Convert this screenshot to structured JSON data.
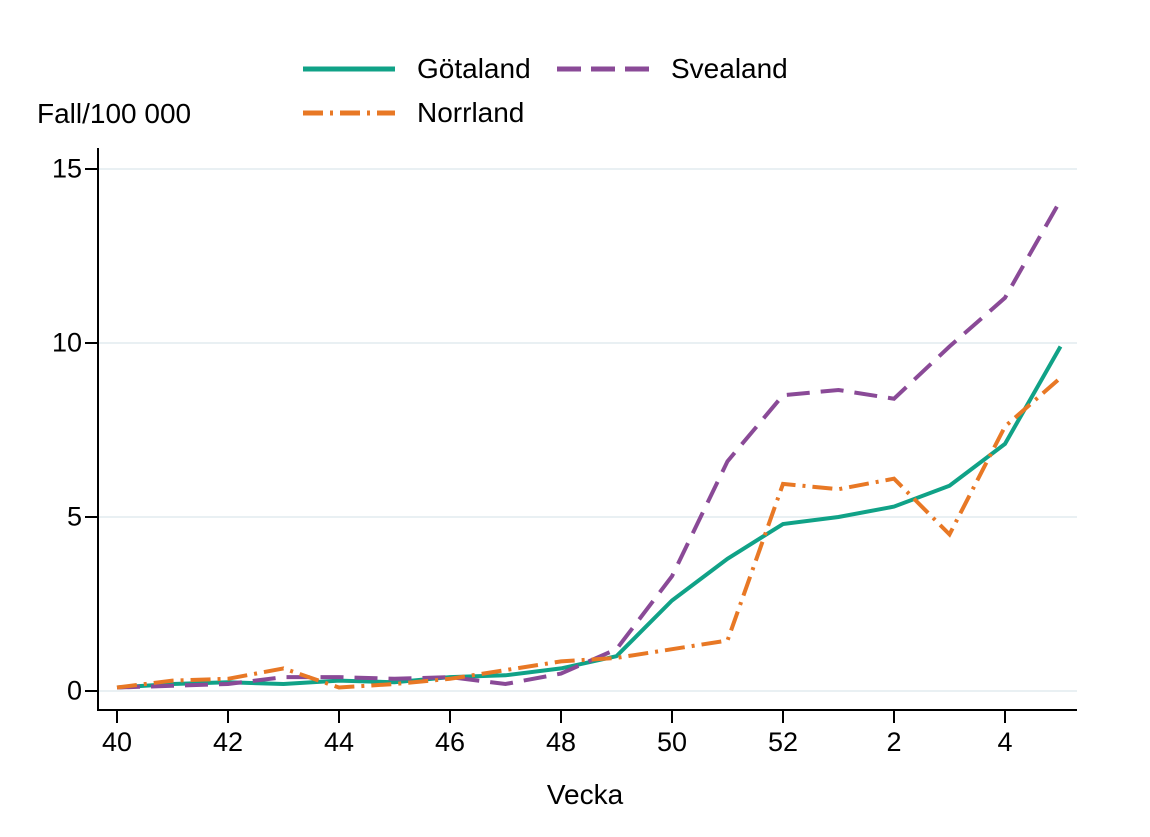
{
  "chart_data": {
    "type": "line",
    "ylabel": "Fall/100 000",
    "xlabel": "Vecka",
    "x_categories": [
      "40",
      "41",
      "42",
      "43",
      "44",
      "45",
      "46",
      "47",
      "48",
      "49",
      "50",
      "51",
      "52",
      "1",
      "2",
      "3",
      "4",
      "5"
    ],
    "x_tick_labels": [
      {
        "index": 0,
        "label": "40"
      },
      {
        "index": 2,
        "label": "42"
      },
      {
        "index": 4,
        "label": "44"
      },
      {
        "index": 6,
        "label": "46"
      },
      {
        "index": 8,
        "label": "48"
      },
      {
        "index": 10,
        "label": "50"
      },
      {
        "index": 12,
        "label": "52"
      },
      {
        "index": 14,
        "label": "2"
      },
      {
        "index": 16,
        "label": "4"
      }
    ],
    "y_ticks": [
      0,
      5,
      10,
      15
    ],
    "ylim": [
      0,
      15
    ],
    "grid": true,
    "legend_position": "top",
    "axis_color": "#000000",
    "gridline_color": "#e9f0f3",
    "series": [
      {
        "name": "Götaland",
        "color": "#10a287",
        "style": "solid",
        "values": [
          0.1,
          0.2,
          0.25,
          0.2,
          0.3,
          0.25,
          0.4,
          0.45,
          0.65,
          1.0,
          2.6,
          3.8,
          4.8,
          5.0,
          5.3,
          5.9,
          7.1,
          9.9
        ]
      },
      {
        "name": "Svealand",
        "color": "#8a4a97",
        "style": "dashed",
        "values": [
          0.1,
          0.15,
          0.2,
          0.4,
          0.4,
          0.35,
          0.4,
          0.2,
          0.5,
          1.2,
          3.3,
          6.6,
          8.5,
          8.65,
          8.4,
          9.9,
          11.3,
          14.1
        ]
      },
      {
        "name": "Norrland",
        "color": "#e87825",
        "style": "dash-dot",
        "values": [
          0.1,
          0.3,
          0.35,
          0.65,
          0.1,
          0.2,
          0.35,
          0.6,
          0.85,
          0.95,
          1.2,
          1.45,
          5.95,
          5.8,
          6.1,
          4.5,
          7.6,
          9.0
        ]
      }
    ]
  }
}
